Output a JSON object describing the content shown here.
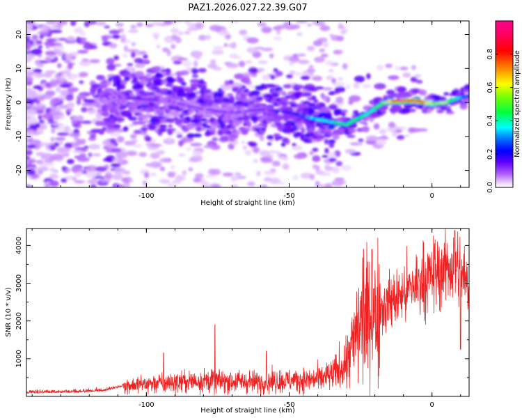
{
  "title": "PAZ1.2026.027.22.39.G07",
  "chart_data": [
    {
      "type": "heatmap",
      "xlabel": "Height of straight line (km)",
      "ylabel": "Frequency (Hz)",
      "xlim": [
        -142,
        13
      ],
      "ylim": [
        -25,
        24
      ],
      "xticks": [
        -100,
        -50,
        0
      ],
      "yticks": [
        -20,
        -10,
        0,
        10,
        20
      ],
      "colorbar": {
        "label": "Normalized spectral amplitude",
        "range": [
          0.0,
          1.0
        ],
        "ticks": [
          0.0,
          0.2,
          0.4,
          0.6,
          0.8
        ]
      },
      "ridge": {
        "x": [
          -112,
          -100,
          -90,
          -80,
          -70,
          -60,
          -50,
          -40,
          -30,
          -22,
          -17,
          -12,
          -5,
          0,
          5,
          10,
          13
        ],
        "y": [
          1.5,
          1.0,
          0.0,
          -2.0,
          -3.0,
          -2.0,
          -3.0,
          -5.0,
          -6.5,
          -3.0,
          0.0,
          0.5,
          0.5,
          -0.5,
          0.0,
          1.5,
          2.0
        ],
        "amplitude": [
          0.12,
          0.15,
          0.12,
          0.12,
          0.12,
          0.15,
          0.2,
          0.35,
          0.45,
          0.4,
          0.5,
          0.92,
          0.92,
          0.55,
          0.55,
          0.3,
          0.25
        ]
      },
      "grid": false
    },
    {
      "type": "line",
      "xlabel": "Height of straight line (km)",
      "ylabel": "SNR (10 * v/v)",
      "xlim": [
        -142,
        13
      ],
      "ylim": [
        0,
        4450
      ],
      "xticks": [
        -100,
        -50,
        0
      ],
      "yticks": [
        1000,
        2000,
        3000,
        4000
      ],
      "color": "#ee2222",
      "envelope_x": [
        -142,
        -125,
        -115,
        -108,
        -100,
        -90,
        -80,
        -70,
        -60,
        -50,
        -40,
        -35,
        -30,
        -27,
        -25,
        -22,
        -20,
        -15,
        -10,
        -5,
        0,
        5,
        8,
        10,
        12,
        13
      ],
      "envelope_y": [
        100,
        120,
        150,
        280,
        330,
        370,
        420,
        400,
        380,
        420,
        450,
        550,
        900,
        1500,
        2000,
        2100,
        2200,
        2500,
        2700,
        3000,
        3200,
        3400,
        3500,
        3300,
        3000,
        2800
      ],
      "spikes": [
        {
          "x": -76,
          "y": 1900
        },
        {
          "x": -24,
          "y": 3900
        },
        {
          "x": -21,
          "y": 3900
        },
        {
          "x": 8,
          "y": 4400
        },
        {
          "x": 10,
          "y": 1250
        },
        {
          "x": -58,
          "y": 1200
        },
        {
          "x": -94,
          "y": 1150
        }
      ],
      "grid": false
    }
  ]
}
